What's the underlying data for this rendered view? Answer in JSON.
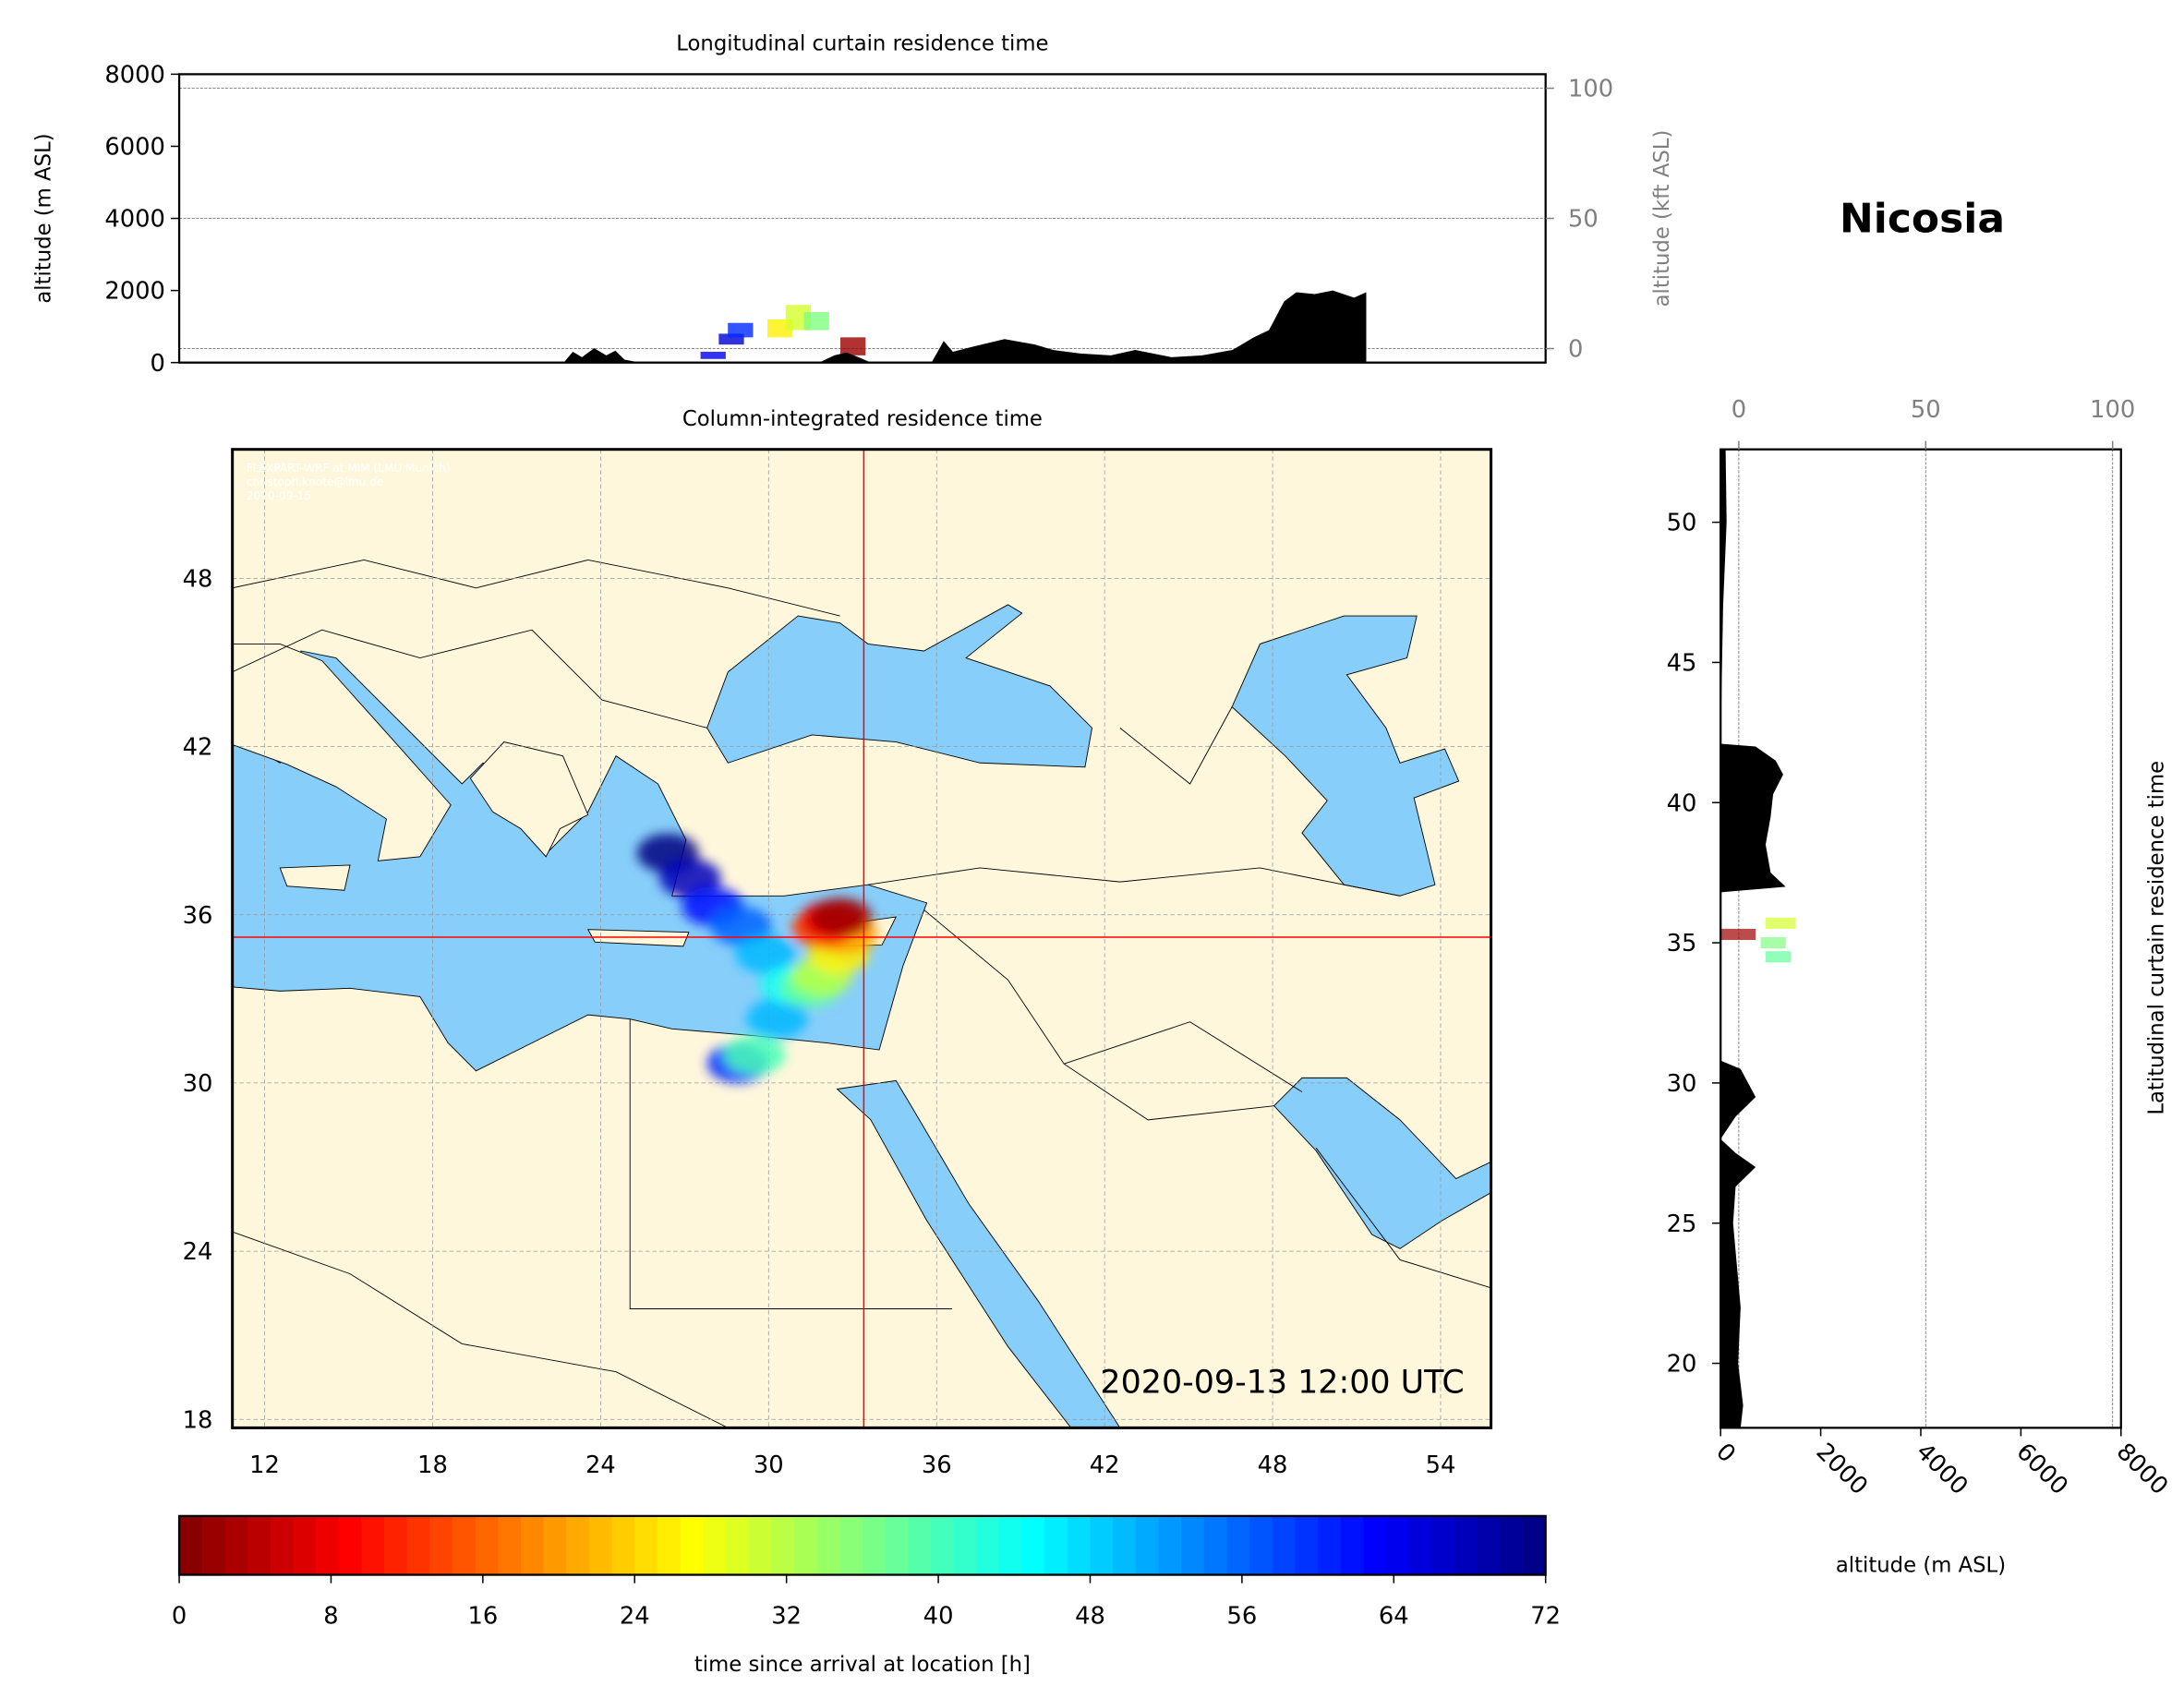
{
  "location": "Nicosia",
  "timestamp": "2020-09-13 12:00 UTC",
  "watermark": [
    "FLEXPART-WRF at MIM (LMU Munich)",
    "christoph.knote@lmu.de",
    "2020-09-15"
  ],
  "colors": {
    "land": "#fff7dc",
    "sea": "#87cefa",
    "crosshair": "#ff0000",
    "terrain": "#000000"
  },
  "release_point": {
    "lon": 33.4,
    "lat": 35.2
  },
  "chart_data": [
    {
      "id": "longitudinal",
      "type": "area",
      "title": "Longitudinal curtain residence time",
      "ylabel": "altitude (m ASL)",
      "ylabel_right": "altitude (kft ASL)",
      "ylim": [
        0,
        8000
      ],
      "yticks": [
        0,
        2000,
        4000,
        6000,
        8000
      ],
      "yticks_right": [
        0,
        50,
        100
      ],
      "xlim": [
        10.85,
        55.8
      ],
      "grid": true,
      "terrain": [
        [
          23.5,
          0
        ],
        [
          23.8,
          300
        ],
        [
          24.1,
          150
        ],
        [
          24.5,
          400
        ],
        [
          24.9,
          200
        ],
        [
          25.2,
          330
        ],
        [
          25.5,
          80
        ],
        [
          26.0,
          0
        ],
        [
          31.9,
          0
        ],
        [
          32.4,
          200
        ],
        [
          32.8,
          280
        ],
        [
          33.2,
          150
        ],
        [
          33.6,
          0
        ],
        [
          35.6,
          0
        ],
        [
          36.0,
          600
        ],
        [
          36.3,
          300
        ],
        [
          37.0,
          450
        ],
        [
          38.0,
          650
        ],
        [
          39.0,
          500
        ],
        [
          39.6,
          350
        ],
        [
          40.5,
          250
        ],
        [
          41.5,
          200
        ],
        [
          42.3,
          350
        ],
        [
          43.5,
          150
        ],
        [
          44.5,
          200
        ],
        [
          45.5,
          350
        ],
        [
          46.2,
          700
        ],
        [
          46.7,
          900
        ],
        [
          47.2,
          1700
        ],
        [
          47.6,
          1950
        ],
        [
          48.2,
          1900
        ],
        [
          48.8,
          2000
        ],
        [
          49.5,
          1800
        ],
        [
          49.9,
          1950
        ],
        [
          49.9,
          0
        ]
      ],
      "residence": [
        [
          28.0,
          100,
          300,
          64
        ],
        [
          28.6,
          500,
          800,
          66
        ],
        [
          28.9,
          700,
          1100,
          60
        ],
        [
          30.2,
          700,
          1200,
          26
        ],
        [
          30.8,
          900,
          1600,
          30
        ],
        [
          31.4,
          900,
          1400,
          36
        ],
        [
          32.6,
          200,
          700,
          2
        ]
      ]
    },
    {
      "id": "map",
      "type": "heatmap",
      "title": "Column-integrated residence time",
      "xlim": [
        10.85,
        55.8
      ],
      "ylim": [
        17.7,
        52.6
      ],
      "xticks": [
        12,
        18,
        24,
        30,
        36,
        42,
        48,
        54
      ],
      "yticks": [
        18,
        24,
        30,
        36,
        42,
        48
      ],
      "grid": true,
      "plume": [
        [
          32.6,
          35.9,
          2
        ],
        [
          32.2,
          35.8,
          8
        ],
        [
          31.9,
          35.5,
          14
        ],
        [
          32.8,
          35.3,
          20
        ],
        [
          32.5,
          34.6,
          26
        ],
        [
          31.9,
          33.8,
          32
        ],
        [
          31.5,
          33.4,
          38
        ],
        [
          30.8,
          33.5,
          44
        ],
        [
          29.9,
          34.6,
          50
        ],
        [
          29.0,
          35.6,
          56
        ],
        [
          28.0,
          36.3,
          62
        ],
        [
          27.2,
          37.3,
          68
        ],
        [
          26.4,
          38.2,
          72
        ],
        [
          30.3,
          32.3,
          50
        ],
        [
          29.5,
          31.0,
          40
        ],
        [
          28.9,
          30.7,
          60
        ]
      ]
    },
    {
      "id": "latitudinal",
      "type": "area",
      "title": "Latitudinal curtain residence time",
      "xlabel": "altitude (m ASL)",
      "xlim": [
        0,
        8000
      ],
      "xticks": [
        0,
        2000,
        4000,
        6000,
        8000
      ],
      "xticks_top": [
        0,
        50,
        100
      ],
      "ylim": [
        17.7,
        52.6
      ],
      "yticks": [
        20,
        25,
        30,
        35,
        40,
        45,
        50
      ],
      "grid": true,
      "terrain": [
        [
          52.6,
          100
        ],
        [
          50,
          120
        ],
        [
          47,
          50
        ],
        [
          42.1,
          0
        ],
        [
          42.0,
          700
        ],
        [
          41.5,
          1100
        ],
        [
          41.0,
          1250
        ],
        [
          40.3,
          1050
        ],
        [
          39.5,
          1000
        ],
        [
          38.5,
          900
        ],
        [
          37.5,
          1000
        ],
        [
          37.0,
          1300
        ],
        [
          36.8,
          0
        ],
        [
          30.8,
          0
        ],
        [
          30.5,
          400
        ],
        [
          29.5,
          700
        ],
        [
          28.8,
          300
        ],
        [
          28.0,
          0
        ],
        [
          27.5,
          300
        ],
        [
          27.0,
          700
        ],
        [
          26.3,
          300
        ],
        [
          25.0,
          250
        ],
        [
          22.0,
          400
        ],
        [
          20.0,
          350
        ],
        [
          18.5,
          450
        ],
        [
          17.7,
          400
        ]
      ],
      "residence": [
        [
          35.3,
          0,
          700,
          2
        ],
        [
          35.7,
          900,
          1500,
          30
        ],
        [
          35.0,
          800,
          1300,
          36
        ],
        [
          34.5,
          900,
          1400,
          38
        ]
      ]
    },
    {
      "id": "colorbar",
      "type": "colorbar",
      "label": "time since arrival at location [h]",
      "range": [
        0,
        72
      ],
      "ticks": [
        0,
        8,
        16,
        24,
        32,
        40,
        48,
        56,
        64,
        72
      ],
      "colormap": "jet_r"
    }
  ]
}
